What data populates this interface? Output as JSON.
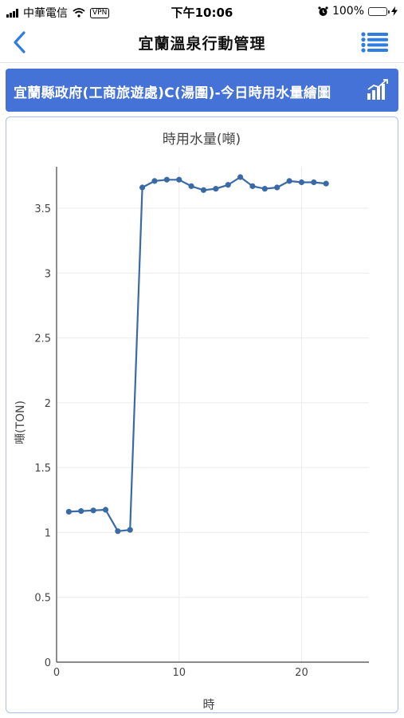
{
  "status_bar": {
    "carrier": "中華電信",
    "vpn": "VPN",
    "time": "下午10:06",
    "battery": "100%"
  },
  "nav": {
    "title": "宜蘭溫泉行動管理",
    "back_icon": "chevron-left-icon",
    "menu_icon": "list-menu-icon"
  },
  "banner": {
    "title": "宜蘭縣政府(工商旅遊處)C(湯圍)-今日時用水量繪圖",
    "icon": "bar-chart-icon"
  },
  "colors": {
    "accent": "#4472d6",
    "line": "#3a6aa5",
    "nav_icon": "#2f7de1"
  },
  "chart_data": {
    "type": "line",
    "title": "時用水量(噸)",
    "xlabel": "時",
    "ylabel": "噸(TON)",
    "xlim": [
      0,
      25.5
    ],
    "ylim": [
      0,
      3.82
    ],
    "xticks": [
      0,
      10,
      20
    ],
    "yticks": [
      0,
      0.5,
      1,
      1.5,
      2,
      2.5,
      3,
      3.5
    ],
    "grid": true,
    "series": [
      {
        "x": [
          1,
          2,
          3,
          4,
          5,
          6,
          7,
          8,
          9,
          10,
          11,
          12,
          13,
          14,
          15,
          16,
          17,
          18,
          19,
          20,
          21,
          22
        ],
        "values": [
          1.16,
          1.165,
          1.17,
          1.175,
          1.01,
          1.02,
          3.66,
          3.71,
          3.72,
          3.72,
          3.67,
          3.64,
          3.65,
          3.68,
          3.74,
          3.67,
          3.65,
          3.66,
          3.71,
          3.7,
          3.7,
          3.69
        ]
      }
    ]
  }
}
